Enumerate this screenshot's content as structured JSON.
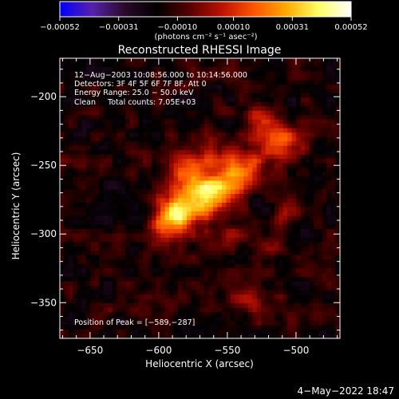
{
  "chart_data": {
    "type": "heatmap",
    "title": "Reconstructed RHESSI Image",
    "xlabel": "Heliocentric X (arcsec)",
    "ylabel": "Heliocentric Y (arcsec)",
    "xlim": [
      -672,
      -468
    ],
    "ylim": [
      -376,
      -172
    ],
    "x_ticks": [
      -650,
      -600,
      -550,
      -500
    ],
    "y_ticks": [
      -200,
      -250,
      -300,
      -350
    ],
    "x_tick_labels": [
      "−650",
      "−600",
      "−550",
      "−500"
    ],
    "y_tick_labels": [
      "−200",
      "−250",
      "−300",
      "−350"
    ],
    "colorbar": {
      "min": -0.00052,
      "max": 0.00052,
      "ticks": [
        -0.00052,
        -0.00031,
        -0.0001,
        0.0001,
        0.00031,
        0.00052
      ],
      "tick_labels": [
        "−0.00052",
        "−0.00031",
        "−0.00010",
        "0.00010",
        "0.00031",
        "0.00052"
      ],
      "unit_label": "(photons cm⁻² s⁻¹ asec⁻²)",
      "colors": [
        "#0000ff",
        "#5522aa",
        "#2a0a2a",
        "#000000",
        "#550000",
        "#bb1100",
        "#ff5500",
        "#ffaa00",
        "#ffff66",
        "#ffffff"
      ]
    },
    "annotations": [
      "12−Aug−2003 10:08:56.000 to 10:14:56.000",
      "Detectors: 3F 4F 5F 6F 7F 8F, Att 0",
      "Energy Range: 25.0 − 50.0 keV",
      "Clean     Total counts: 7.05E+03"
    ],
    "peak_label": "Position of Peak = [−589,−287]",
    "peak": [
      -589,
      -287
    ],
    "sources": [
      {
        "x": -589,
        "y": -287,
        "amp": 0.00052,
        "sigma": 9
      },
      {
        "x": -575,
        "y": -272,
        "amp": 0.00042,
        "sigma": 12
      },
      {
        "x": -555,
        "y": -268,
        "amp": 0.00036,
        "sigma": 11
      },
      {
        "x": -538,
        "y": -250,
        "amp": 0.0003,
        "sigma": 10
      },
      {
        "x": -512,
        "y": -232,
        "amp": 0.00026,
        "sigma": 10
      },
      {
        "x": -528,
        "y": -218,
        "amp": 0.00022,
        "sigma": 8
      },
      {
        "x": -583,
        "y": -248,
        "amp": 0.00018,
        "sigma": 8
      },
      {
        "x": -558,
        "y": -242,
        "amp": 0.00016,
        "sigma": 8
      },
      {
        "x": -546,
        "y": -300,
        "amp": 0.00014,
        "sigma": 7
      },
      {
        "x": -520,
        "y": -310,
        "amp": 0.00012,
        "sigma": 7
      },
      {
        "x": -537,
        "y": -350,
        "amp": 0.00018,
        "sigma": 6
      },
      {
        "x": -505,
        "y": -285,
        "amp": 0.00012,
        "sigma": 7
      },
      {
        "x": -602,
        "y": -300,
        "amp": 0.00012,
        "sigma": 7
      }
    ],
    "timestamp": "4−May−2022 18:47"
  }
}
